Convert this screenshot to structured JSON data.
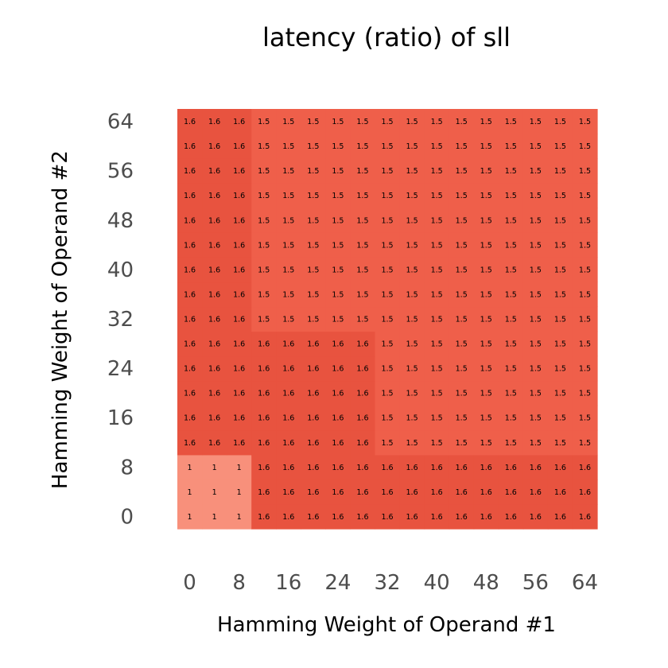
{
  "chart_data": {
    "type": "heatmap",
    "title": "latency (ratio) of sll",
    "xlabel": "Hamming Weight of Operand #1",
    "ylabel": "Hamming Weight of Operand #2",
    "x_tick_labels": [
      "0",
      "8",
      "16",
      "24",
      "32",
      "40",
      "48",
      "56",
      "64"
    ],
    "y_tick_labels": [
      "0",
      "8",
      "16",
      "24",
      "32",
      "40",
      "48",
      "56",
      "64"
    ],
    "xlim": [
      0,
      68
    ],
    "ylim": [
      0,
      68
    ],
    "x_centers": [
      0,
      4,
      8,
      12,
      16,
      20,
      24,
      28,
      32,
      36,
      40,
      44,
      48,
      52,
      56,
      60,
      64
    ],
    "y_centers": [
      0,
      4,
      8,
      12,
      16,
      20,
      24,
      28,
      32,
      36,
      40,
      44,
      48,
      52,
      56,
      60,
      64
    ],
    "values": [
      [
        1,
        1,
        1,
        1.6,
        1.6,
        1.6,
        1.6,
        1.6,
        1.6,
        1.6,
        1.6,
        1.6,
        1.6,
        1.6,
        1.6,
        1.6,
        1.6
      ],
      [
        1,
        1,
        1,
        1.6,
        1.6,
        1.6,
        1.6,
        1.6,
        1.6,
        1.6,
        1.6,
        1.6,
        1.6,
        1.6,
        1.6,
        1.6,
        1.6
      ],
      [
        1,
        1,
        1,
        1.6,
        1.6,
        1.6,
        1.6,
        1.6,
        1.6,
        1.6,
        1.6,
        1.6,
        1.6,
        1.6,
        1.6,
        1.6,
        1.6
      ],
      [
        1.6,
        1.6,
        1.6,
        1.6,
        1.6,
        1.6,
        1.6,
        1.6,
        1.5,
        1.5,
        1.5,
        1.5,
        1.5,
        1.5,
        1.5,
        1.5,
        1.5
      ],
      [
        1.6,
        1.6,
        1.6,
        1.6,
        1.6,
        1.6,
        1.6,
        1.6,
        1.5,
        1.5,
        1.5,
        1.5,
        1.5,
        1.5,
        1.5,
        1.5,
        1.5
      ],
      [
        1.6,
        1.6,
        1.6,
        1.6,
        1.6,
        1.6,
        1.6,
        1.6,
        1.5,
        1.5,
        1.5,
        1.5,
        1.5,
        1.5,
        1.5,
        1.5,
        1.5
      ],
      [
        1.6,
        1.6,
        1.6,
        1.6,
        1.6,
        1.6,
        1.6,
        1.6,
        1.5,
        1.5,
        1.5,
        1.5,
        1.5,
        1.5,
        1.5,
        1.5,
        1.5
      ],
      [
        1.6,
        1.6,
        1.6,
        1.6,
        1.6,
        1.6,
        1.6,
        1.6,
        1.5,
        1.5,
        1.5,
        1.5,
        1.5,
        1.5,
        1.5,
        1.5,
        1.5
      ],
      [
        1.6,
        1.6,
        1.6,
        1.5,
        1.5,
        1.5,
        1.5,
        1.5,
        1.5,
        1.5,
        1.5,
        1.5,
        1.5,
        1.5,
        1.5,
        1.5,
        1.5
      ],
      [
        1.6,
        1.6,
        1.6,
        1.5,
        1.5,
        1.5,
        1.5,
        1.5,
        1.5,
        1.5,
        1.5,
        1.5,
        1.5,
        1.5,
        1.5,
        1.5,
        1.5
      ],
      [
        1.6,
        1.6,
        1.6,
        1.5,
        1.5,
        1.5,
        1.5,
        1.5,
        1.5,
        1.5,
        1.5,
        1.5,
        1.5,
        1.5,
        1.5,
        1.5,
        1.5
      ],
      [
        1.6,
        1.6,
        1.6,
        1.5,
        1.5,
        1.5,
        1.5,
        1.5,
        1.5,
        1.5,
        1.5,
        1.5,
        1.5,
        1.5,
        1.5,
        1.5,
        1.5
      ],
      [
        1.6,
        1.6,
        1.6,
        1.5,
        1.5,
        1.5,
        1.5,
        1.5,
        1.5,
        1.5,
        1.5,
        1.5,
        1.5,
        1.5,
        1.5,
        1.5,
        1.5
      ],
      [
        1.6,
        1.6,
        1.6,
        1.5,
        1.5,
        1.5,
        1.5,
        1.5,
        1.5,
        1.5,
        1.5,
        1.5,
        1.5,
        1.5,
        1.5,
        1.5,
        1.5
      ],
      [
        1.6,
        1.6,
        1.6,
        1.5,
        1.5,
        1.5,
        1.5,
        1.5,
        1.5,
        1.5,
        1.5,
        1.5,
        1.5,
        1.5,
        1.5,
        1.5,
        1.5
      ],
      [
        1.6,
        1.6,
        1.6,
        1.5,
        1.5,
        1.5,
        1.5,
        1.5,
        1.5,
        1.5,
        1.5,
        1.5,
        1.5,
        1.5,
        1.5,
        1.5,
        1.5
      ],
      [
        1.6,
        1.6,
        1.6,
        1.5,
        1.5,
        1.5,
        1.5,
        1.5,
        1.5,
        1.5,
        1.5,
        1.5,
        1.5,
        1.5,
        1.5,
        1.5,
        1.5
      ]
    ],
    "colors": {
      "1": "#f8907b",
      "1.5": "#ef5f4a",
      "1.6": "#e8533f"
    },
    "grid": false,
    "legend": "none"
  }
}
